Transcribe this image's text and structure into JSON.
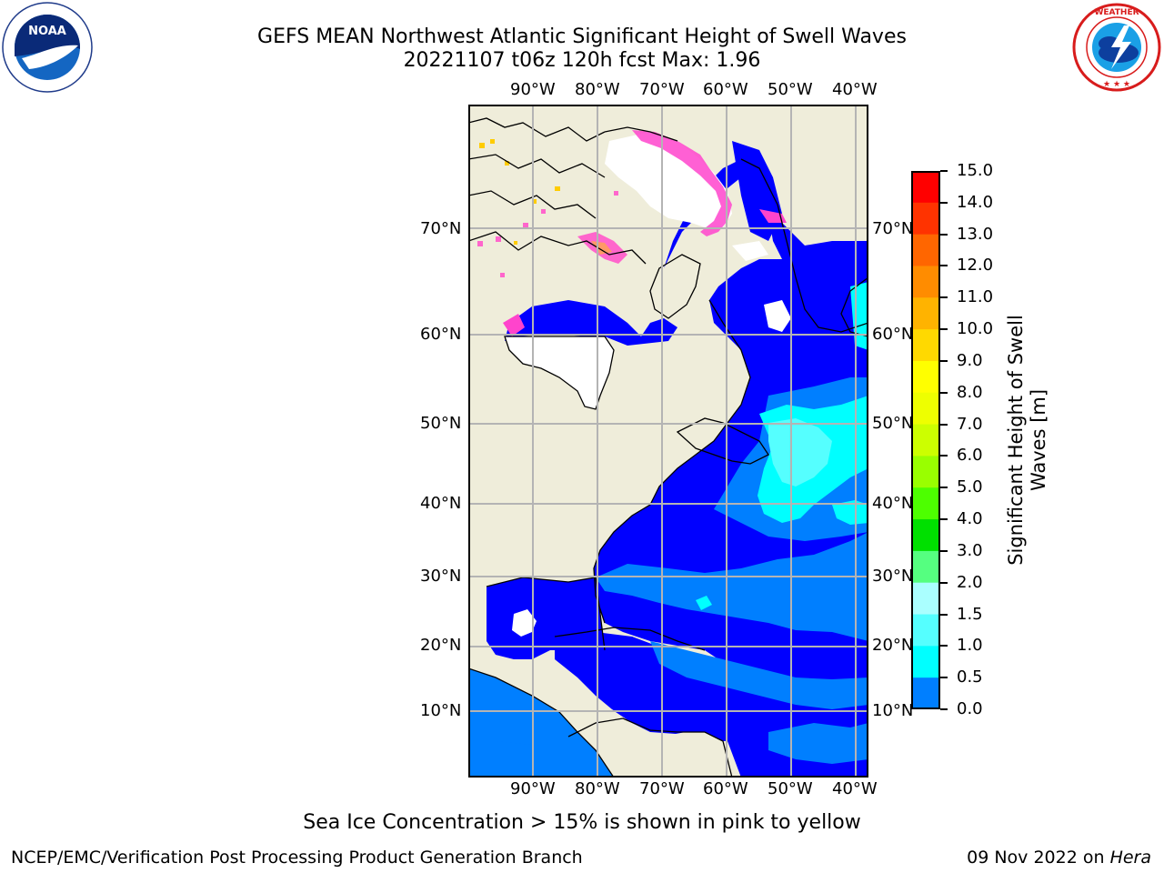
{
  "header": {
    "title": "GEFS MEAN Northwest Atlantic Significant Height of Swell Waves",
    "subtitle": "20221107 t06z 120h fcst   Max: 1.96"
  },
  "logos": {
    "noara": {
      "outer_text": "NATIONAL OCEANIC AND ATMOSPHERIC ADMINISTRATION",
      "bottom_text": "U.S. DEPARTMENT OF COMMERCE",
      "center": "NOAA"
    },
    "nws": {
      "outer_text": "NATIONAL WEATHER SERVICE"
    }
  },
  "map": {
    "lon_labels": [
      "90°W",
      "80°W",
      "70°W",
      "60°W",
      "50°W",
      "40°W"
    ],
    "lat_labels": [
      "70°N",
      "60°N",
      "50°N",
      "40°N",
      "30°N",
      "20°N",
      "10°N"
    ],
    "colors": {
      "land": "#efedda",
      "ice": "#ffffff",
      "coast": "#000000",
      "grid": "#b4b4b4"
    }
  },
  "colorbar": {
    "label_line1": "Significant Height of Swell",
    "label_line2": "Waves [m]",
    "ticks": [
      "15.0",
      "14.0",
      "13.0",
      "12.0",
      "11.0",
      "10.0",
      "9.0",
      "8.0",
      "7.0",
      "6.0",
      "5.0",
      "4.0",
      "3.0",
      "2.0",
      "1.5",
      "1.0",
      "0.5",
      "0.0"
    ],
    "colors": [
      "#ff0000",
      "#ff3300",
      "#ff6600",
      "#ff8c00",
      "#ffb300",
      "#ffd900",
      "#ffff00",
      "#eeff00",
      "#ccff00",
      "#99ff00",
      "#4dff00",
      "#00e000",
      "#55ff80",
      "#aaffff",
      "#55ffff",
      "#00ffff",
      "#007fff",
      "#0000ff"
    ]
  },
  "note": "Sea Ice Concentration > 15% is shown in pink to yellow",
  "footer": {
    "left": "NCEP/EMC/Verification Post Processing Product Generation Branch",
    "right_prefix": "09 Nov 2022 on ",
    "right_host": "Hera"
  }
}
